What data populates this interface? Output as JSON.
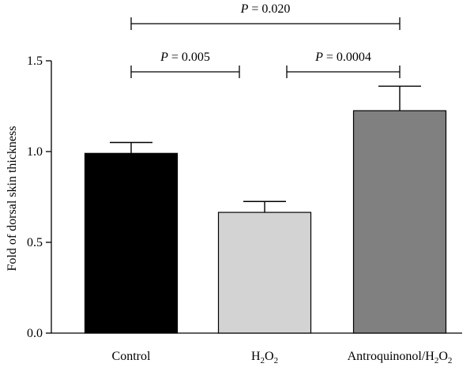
{
  "chart_data": {
    "type": "bar",
    "title": "",
    "xlabel": "",
    "ylabel": "Fold of dorsal skin thickness",
    "ylim": [
      0,
      1.5
    ],
    "yticks": [
      "0.0",
      "0.5",
      "1.0",
      "1.5"
    ],
    "ytick_values": [
      0,
      0.5,
      1.0,
      1.5
    ],
    "categories": [
      {
        "label": "Control",
        "base": "Control",
        "sub": ""
      },
      {
        "label": "H2O2",
        "base": "H",
        "sub": "2",
        "base2": "O",
        "sub2": "2"
      },
      {
        "label": "Antroquinonol/H2O2",
        "base": "Antroquinonol/H",
        "sub": "2",
        "base2": "O",
        "sub2": "2"
      }
    ],
    "values": [
      0.99,
      0.665,
      1.225
    ],
    "errors": [
      0.06,
      0.06,
      0.135
    ],
    "bar_colors": [
      "#000000",
      "#d3d3d3",
      "#808080"
    ],
    "grid": false,
    "legend": "none",
    "significance": [
      {
        "from": 0,
        "to": 1,
        "label": "P = 0.005",
        "italic": "P",
        "rest": " = 0.005",
        "level": 1
      },
      {
        "from": 1,
        "to": 2,
        "label": "P = 0.0004",
        "italic": "P",
        "rest": " = 0.0004",
        "level": 1
      },
      {
        "from": 0,
        "to": 2,
        "label": "P = 0.020",
        "italic": "P",
        "rest": " = 0.020",
        "level": 2
      }
    ]
  }
}
